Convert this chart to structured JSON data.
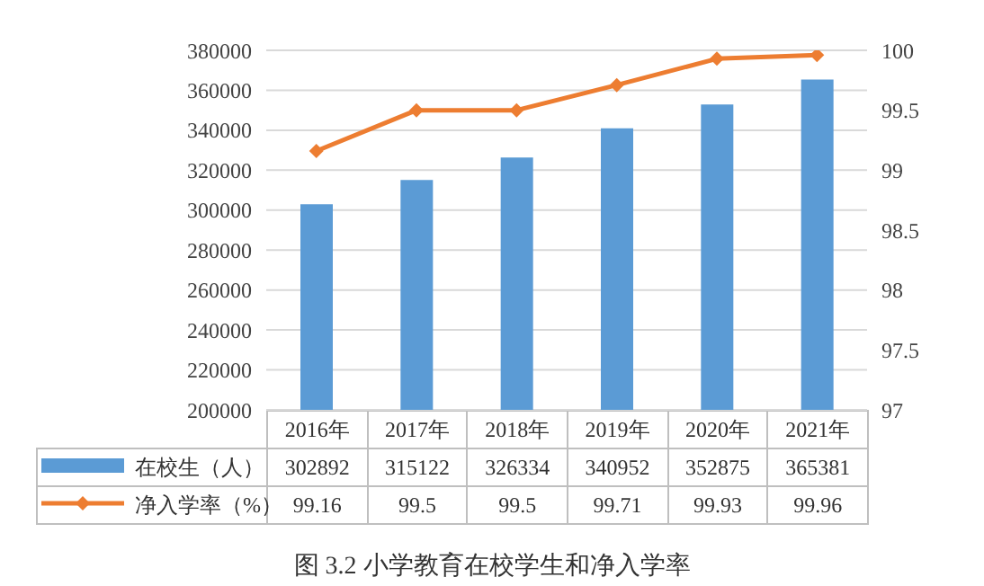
{
  "chart_data": {
    "type": "bar",
    "title": "图 3.2  小学教育在校学生和净入学率",
    "categories": [
      "2016年",
      "2017年",
      "2018年",
      "2019年",
      "2020年",
      "2021年"
    ],
    "series": [
      {
        "name": "在校生（人）",
        "color": "#5b9bd5",
        "values": [
          302892,
          315122,
          326334,
          340952,
          352875,
          365381
        ]
      },
      {
        "name": "净入学率（%）",
        "type": "line",
        "axis": "y2",
        "color": "#ed7d31",
        "marker": "diamond",
        "values": [
          99.16,
          99.5,
          99.5,
          99.71,
          99.93,
          99.96
        ]
      }
    ],
    "ylim": [
      200000,
      380000
    ],
    "yticks": [
      200000,
      220000,
      240000,
      260000,
      280000,
      300000,
      320000,
      340000,
      360000,
      380000
    ],
    "y2lim": [
      97,
      100
    ],
    "y2ticks": [
      97,
      97.5,
      98,
      98.5,
      99,
      99.5,
      100
    ],
    "grid": "y",
    "legend": "bottom",
    "data_labels": true
  }
}
